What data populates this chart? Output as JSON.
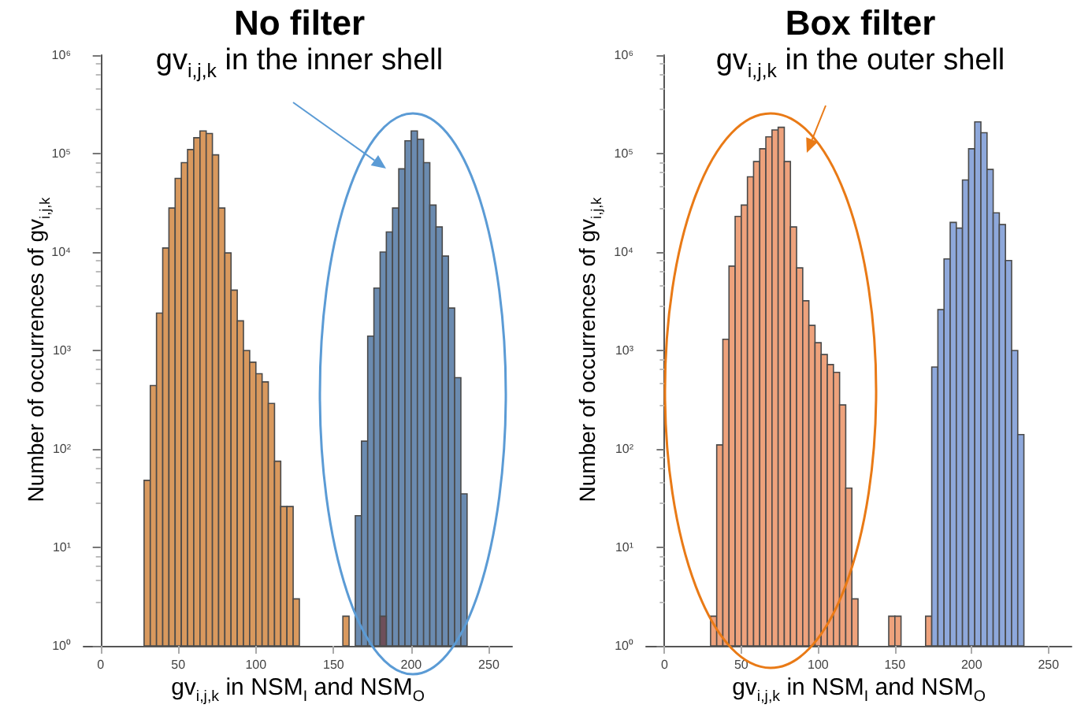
{
  "chart_data": [
    {
      "type": "histogram",
      "title": "No filter",
      "subtitle": "gv$_{i,j,k}$ in the inner shell",
      "xlabel": "gv$_{i,j,k}$  in NSM$_{I}$ and NSM$_{O}$",
      "ylabel": "Number of occurrences of gv$_{i,j,k}$",
      "xlim": [
        -11,
        265
      ],
      "xticks": [
        0,
        50,
        100,
        150,
        200,
        250
      ],
      "ylim": [
        1,
        1000000
      ],
      "log": "y",
      "grid": false,
      "yticks": [
        {
          "value": 1,
          "label": "10⁰"
        },
        {
          "value": 10,
          "label": "10¹"
        },
        {
          "value": 100,
          "label": "10²"
        },
        {
          "value": 1000,
          "label": "10³"
        },
        {
          "value": 10000,
          "label": "10⁴"
        },
        {
          "value": 100000,
          "label": "10⁵"
        },
        {
          "value": 1000000,
          "label": "10⁶"
        }
      ],
      "bins": [
        28,
        32,
        36,
        40,
        44,
        48,
        52,
        56,
        60,
        64,
        68,
        72,
        76,
        80,
        84,
        88,
        92,
        96,
        100,
        104,
        108,
        112,
        116,
        120,
        124,
        128,
        132,
        136,
        140,
        144,
        148,
        152,
        156,
        160,
        164,
        168,
        172,
        176,
        180,
        184,
        188,
        192,
        196,
        200,
        204,
        208,
        212,
        216,
        220,
        224,
        228,
        232,
        236
      ],
      "series": [
        {
          "color": "#d9995e",
          "values": [
            48,
            440,
            2400,
            11000,
            28000,
            56000,
            81000,
            110000,
            145000,
            170000,
            160000,
            97000,
            28000,
            9800,
            4100,
            2000,
            1000,
            760,
            580,
            480,
            290,
            75,
            26,
            26,
            3,
            null,
            null,
            null,
            null,
            null,
            null,
            null,
            2,
            null,
            null,
            null,
            null,
            null,
            null,
            null,
            null,
            null,
            null,
            null,
            null,
            null,
            null,
            null,
            null,
            null,
            null,
            null
          ]
        },
        {
          "color": "#6b8bb0",
          "values": [
            null,
            null,
            null,
            null,
            null,
            null,
            null,
            null,
            null,
            null,
            null,
            null,
            null,
            null,
            null,
            null,
            null,
            null,
            null,
            null,
            null,
            null,
            null,
            null,
            null,
            null,
            null,
            null,
            null,
            null,
            null,
            null,
            null,
            null,
            21,
            120,
            1400,
            4300,
            10000,
            16000,
            28000,
            70000,
            135000,
            170000,
            140000,
            81000,
            30000,
            18000,
            9100,
            2700,
            530,
            35
          ]
        },
        {
          "color": "#6e4f5a",
          "values": [
            null,
            null,
            null,
            null,
            null,
            null,
            null,
            null,
            null,
            null,
            null,
            null,
            null,
            null,
            null,
            null,
            null,
            null,
            null,
            null,
            null,
            null,
            null,
            null,
            null,
            null,
            null,
            null,
            null,
            null,
            null,
            null,
            null,
            null,
            null,
            null,
            null,
            null,
            2,
            null,
            null,
            null,
            null,
            null,
            null,
            null,
            null,
            null,
            null,
            null,
            null,
            null
          ]
        }
      ]
    },
    {
      "type": "histogram",
      "title": "Box filter",
      "subtitle": "gv$_{i,j,k}$ in the outer shell",
      "xlabel": "gv$_{i,j,k}$  in NSM$_{I}$ and NSM$_{O}$",
      "ylabel": "Number of occurrences of gv$_{i,j,k}$",
      "xlim": [
        -12,
        265
      ],
      "xticks": [
        0,
        50,
        100,
        150,
        200,
        250
      ],
      "ylim": [
        1,
        1000000
      ],
      "log": "y",
      "grid": false,
      "yticks": [
        {
          "value": 1,
          "label": "10⁰"
        },
        {
          "value": 10,
          "label": "10¹"
        },
        {
          "value": 100,
          "label": "10²"
        },
        {
          "value": 1000,
          "label": "10³"
        },
        {
          "value": 10000,
          "label": "10⁴"
        },
        {
          "value": 100000,
          "label": "10⁵"
        },
        {
          "value": 1000000,
          "label": "10⁶"
        }
      ],
      "bins": [
        30,
        34,
        38,
        42,
        46,
        50,
        54,
        58,
        62,
        66,
        70,
        74,
        78,
        82,
        86,
        90,
        94,
        98,
        102,
        106,
        110,
        114,
        118,
        122,
        126,
        130,
        134,
        138,
        142,
        146,
        150,
        154,
        158,
        162,
        166,
        170,
        174,
        178,
        182,
        186,
        190,
        194,
        198,
        202,
        206,
        210,
        214,
        218,
        222,
        226,
        230,
        234
      ],
      "series": [
        {
          "color": "#eea27c",
          "values": [
            2,
            110,
            1300,
            7200,
            23000,
            30000,
            58000,
            83000,
            112000,
            148000,
            174000,
            185000,
            83000,
            18000,
            6900,
            3200,
            1800,
            1200,
            910,
            720,
            600,
            280,
            40,
            3,
            null,
            null,
            null,
            null,
            null,
            2,
            2,
            null,
            null,
            null,
            null,
            2,
            null,
            null,
            null,
            null,
            null,
            null,
            null,
            null,
            null,
            null,
            null,
            null,
            null,
            null,
            null
          ]
        },
        {
          "color": "#8ea8db",
          "values": [
            null,
            null,
            null,
            null,
            null,
            null,
            null,
            null,
            null,
            null,
            null,
            null,
            null,
            null,
            null,
            null,
            null,
            null,
            null,
            null,
            null,
            null,
            null,
            null,
            null,
            null,
            null,
            null,
            null,
            null,
            null,
            null,
            null,
            null,
            null,
            null,
            680,
            2600,
            8500,
            20000,
            17500,
            54000,
            112000,
            210000,
            163000,
            69000,
            25000,
            19000,
            8200,
            1000,
            140
          ]
        }
      ]
    }
  ]
}
